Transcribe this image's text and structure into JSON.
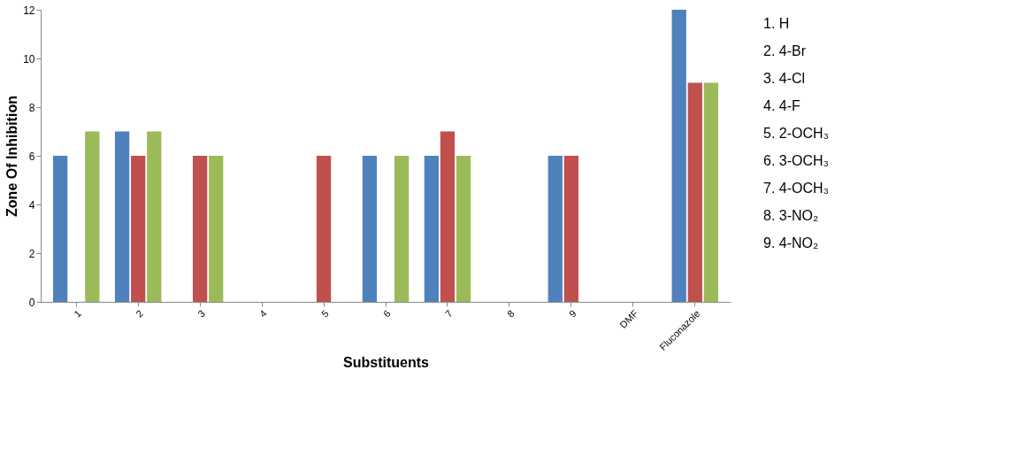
{
  "chart_data": {
    "type": "bar",
    "xlabel": "Substituents",
    "ylabel": "Zone Of Inhibition",
    "categories": [
      "1",
      "2",
      "3",
      "4",
      "5",
      "6",
      "7",
      "8",
      "9",
      "DMF",
      "Fluconazole"
    ],
    "series": [
      {
        "color": "#4f81bd",
        "values": [
          6,
          7,
          0,
          0,
          0,
          6,
          6,
          0,
          6,
          0,
          12
        ]
      },
      {
        "color": "#c0504d",
        "values": [
          0,
          6,
          6,
          0,
          6,
          0,
          7,
          0,
          6,
          0,
          9
        ]
      },
      {
        "color": "#9bbb59",
        "values": [
          7,
          7,
          6,
          0,
          0,
          6,
          6,
          0,
          0,
          0,
          9
        ]
      }
    ],
    "ylim": [
      0,
      12
    ],
    "yticks": [
      0,
      2,
      4,
      6,
      8,
      10,
      12
    ],
    "grid": false,
    "annotations": [
      "1. H",
      "2. 4-Br",
      "3. 4-Cl",
      "4. 4-F",
      "5. 2-OCH₃",
      "6. 3-OCH₃",
      "7. 4-OCH₃",
      "8. 3-NO₂",
      "9. 4-NO₂"
    ]
  }
}
